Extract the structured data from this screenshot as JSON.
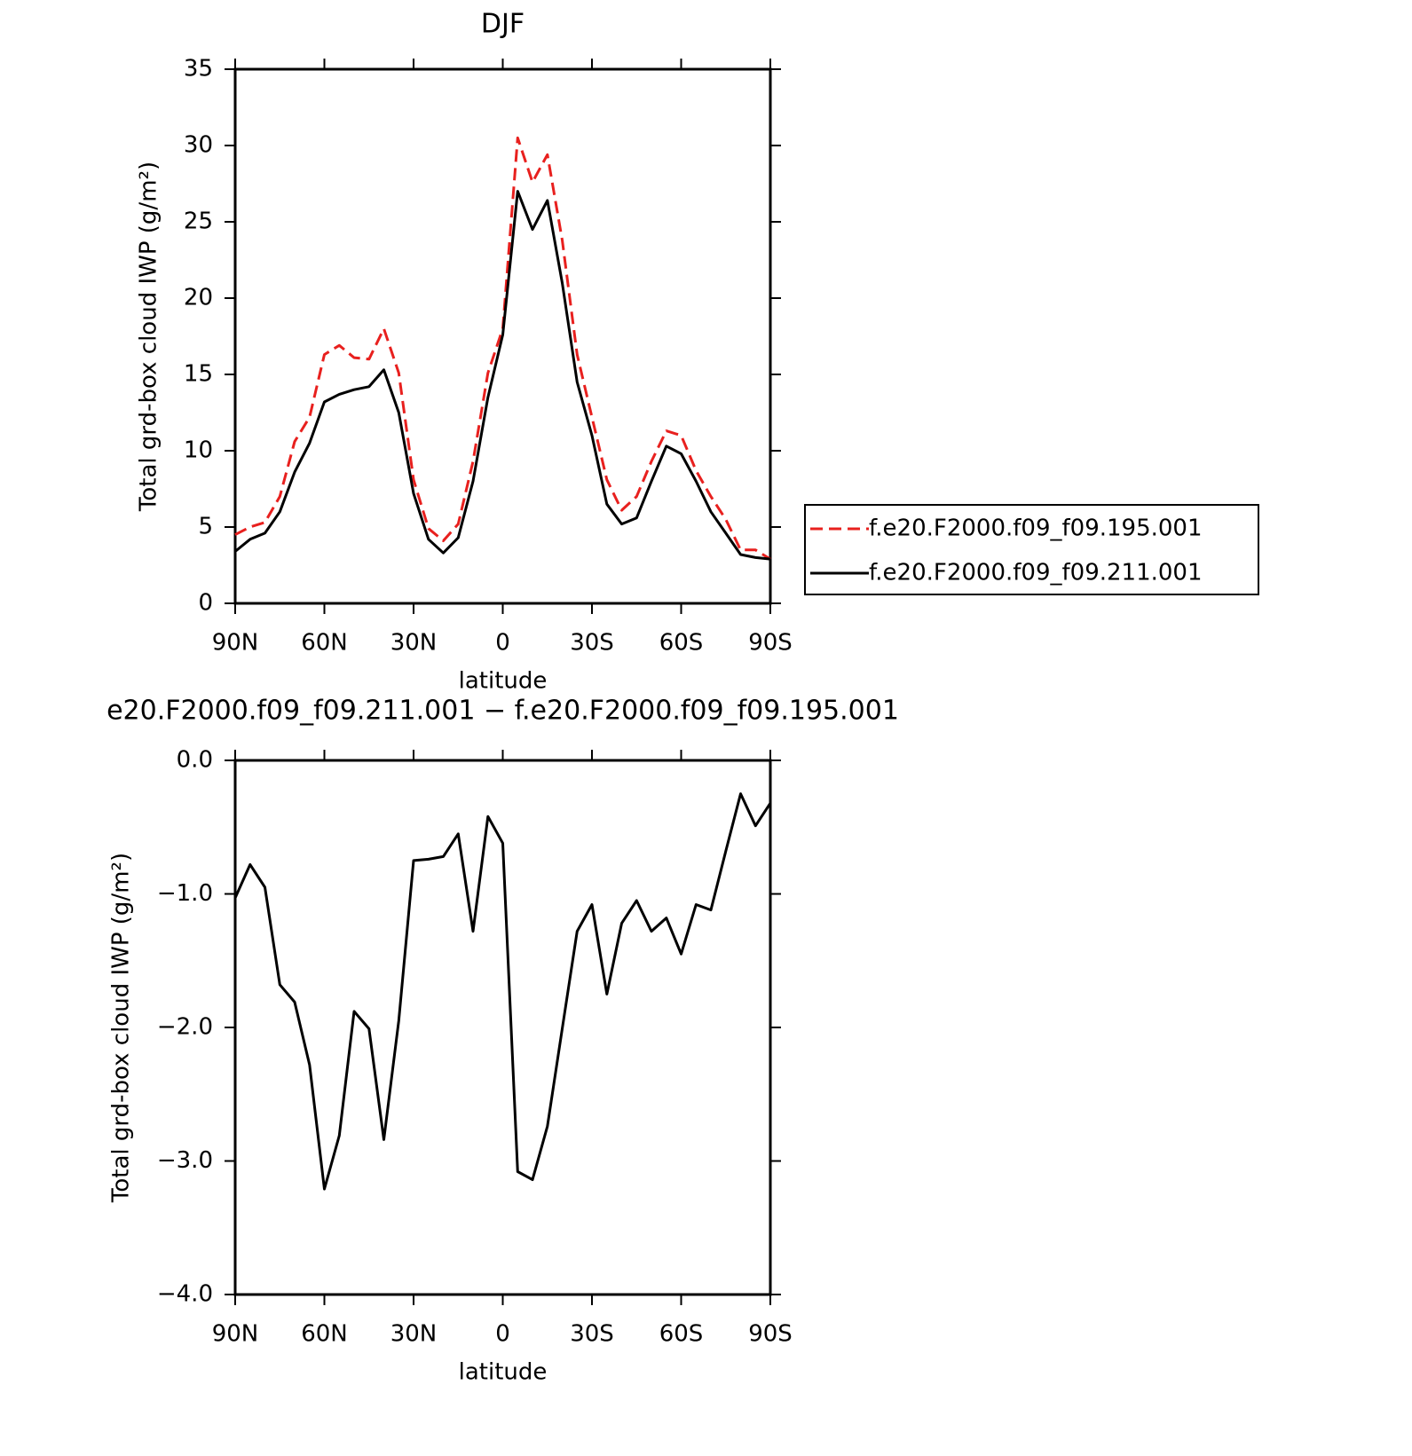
{
  "chart_data": [
    {
      "type": "line",
      "title": "DJF",
      "x_label": "latitude",
      "y_label": "Total grd-box cloud IWP (g/m²)",
      "x": [
        90,
        85,
        80,
        75,
        70,
        65,
        60,
        55,
        50,
        45,
        40,
        35,
        30,
        25,
        20,
        15,
        10,
        5,
        0,
        -5,
        -10,
        -15,
        -20,
        -25,
        -30,
        -35,
        -40,
        -45,
        -50,
        -55,
        -60,
        -65,
        -70,
        -75,
        -80,
        -85,
        -90
      ],
      "xlim": [
        90,
        -90
      ],
      "xticks": [
        {
          "value": 90,
          "label": "90N"
        },
        {
          "value": 60,
          "label": "60N"
        },
        {
          "value": 30,
          "label": "30N"
        },
        0,
        {
          "value": -30,
          "label": "30S"
        },
        {
          "value": -60,
          "label": "60S"
        },
        {
          "value": -90,
          "label": "90S"
        }
      ],
      "ylim": [
        0,
        35
      ],
      "yticks": [
        0,
        5,
        10,
        15,
        20,
        25,
        30,
        35
      ],
      "series": [
        {
          "name": "f.e20.F2000.f09_f09.195.001",
          "color": "#e8201e",
          "linestyle": "dashed",
          "values": [
            4.5,
            5.0,
            5.3,
            7.0,
            10.6,
            12.2,
            16.3,
            16.9,
            16.1,
            16.0,
            18.0,
            15.1,
            8.1,
            4.9,
            4.1,
            5.2,
            9.3,
            15.1,
            18.0,
            30.5,
            27.6,
            29.4,
            23.8,
            16.3,
            12.2,
            8.1,
            6.1,
            7.0,
            9.3,
            11.3,
            11.0,
            8.7,
            7.0,
            5.5,
            3.5,
            3.5,
            2.9
          ]
        },
        {
          "name": "f.e20.F2000.f09_f09.211.001",
          "color": "#000000",
          "linestyle": "solid",
          "values": [
            3.4,
            4.2,
            4.6,
            6.0,
            8.6,
            10.5,
            13.2,
            13.7,
            14.0,
            14.2,
            15.3,
            12.5,
            7.2,
            4.2,
            3.3,
            4.3,
            8.0,
            13.5,
            17.6,
            27.0,
            24.5,
            26.4,
            21.0,
            14.5,
            11.0,
            6.5,
            5.2,
            5.6,
            8.0,
            10.3,
            9.8,
            8.0,
            6.0,
            4.6,
            3.2,
            3.0,
            2.9
          ]
        }
      ]
    },
    {
      "type": "line",
      "title": "e20.F2000.f09_f09.211.001 − f.e20.F2000.f09_f09.195.001",
      "x_label": "latitude",
      "y_label": "Total grd-box cloud IWP (g/m²)",
      "x": [
        90,
        85,
        80,
        75,
        70,
        65,
        60,
        55,
        50,
        45,
        40,
        35,
        30,
        25,
        20,
        15,
        10,
        5,
        0,
        -5,
        -10,
        -15,
        -20,
        -25,
        -30,
        -35,
        -40,
        -45,
        -50,
        -55,
        -60,
        -65,
        -70,
        -75,
        -80,
        -85,
        -90
      ],
      "xlim": [
        90,
        -90
      ],
      "xticks": [
        {
          "value": 90,
          "label": "90N"
        },
        {
          "value": 60,
          "label": "60N"
        },
        {
          "value": 30,
          "label": "30N"
        },
        0,
        {
          "value": -30,
          "label": "30S"
        },
        {
          "value": -60,
          "label": "60S"
        },
        {
          "value": -90,
          "label": "90S"
        }
      ],
      "ylim": [
        -4,
        0
      ],
      "yticks": [
        {
          "value": 0,
          "label": "0.0"
        },
        {
          "value": -1,
          "label": "−1.0"
        },
        {
          "value": -2,
          "label": "−2.0"
        },
        {
          "value": -3,
          "label": "−3.0"
        },
        {
          "value": -4,
          "label": "−4.0"
        }
      ],
      "series": [
        {
          "color": "#000000",
          "linestyle": "solid",
          "values": [
            -1.03,
            -0.78,
            -0.95,
            -1.68,
            -1.81,
            -2.28,
            -3.21,
            -2.81,
            -1.88,
            -2.01,
            -2.84,
            -1.95,
            -0.75,
            -0.74,
            -0.72,
            -0.55,
            -1.28,
            -0.42,
            -0.62,
            -3.08,
            -3.14,
            -2.74,
            -2.01,
            -1.28,
            -1.08,
            -1.75,
            -1.22,
            -1.05,
            -1.28,
            -1.18,
            -1.45,
            -1.08,
            -1.12,
            -0.68,
            -0.25,
            -0.49,
            -0.32
          ]
        }
      ]
    }
  ]
}
